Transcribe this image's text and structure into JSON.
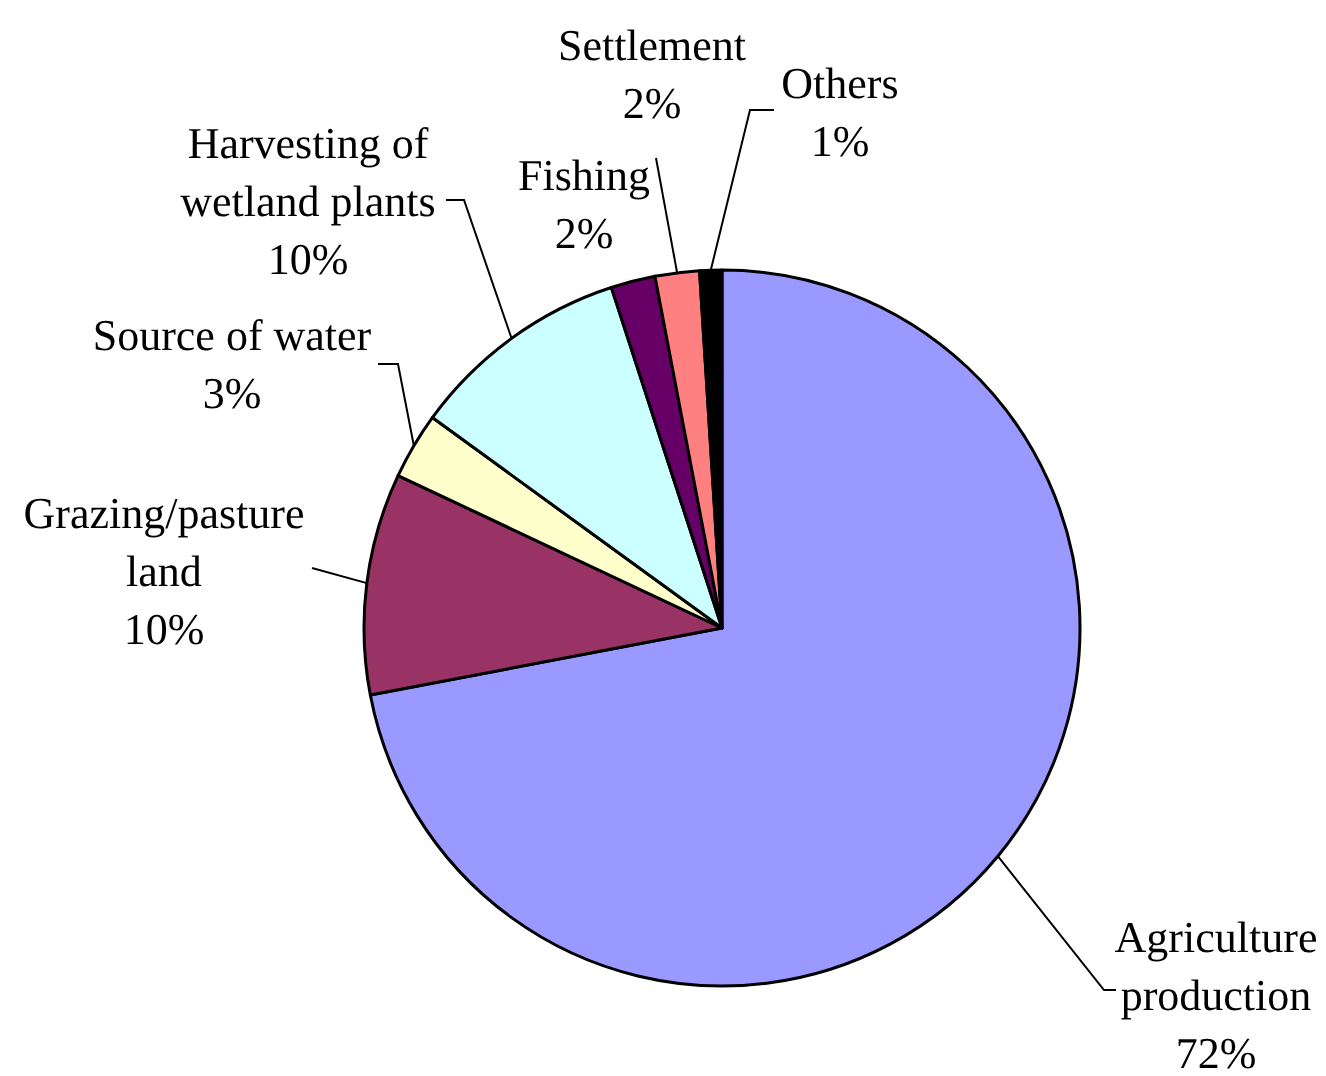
{
  "chart_data": {
    "type": "pie",
    "categories": [
      "Agriculture production",
      "Grazing/pasture land",
      "Source of water",
      "Harvesting of wetland plants",
      "Fishing",
      "Settlement",
      "Others"
    ],
    "values": [
      72,
      10,
      3,
      10,
      2,
      2,
      1
    ],
    "value_labels": [
      "72%",
      "10%",
      "3%",
      "10%",
      "2%",
      "2%",
      "1%"
    ],
    "colors": [
      "#9999ff",
      "#993366",
      "#ffffcc",
      "#ccffff",
      "#660066",
      "#ff8080",
      "#000000"
    ]
  }
}
